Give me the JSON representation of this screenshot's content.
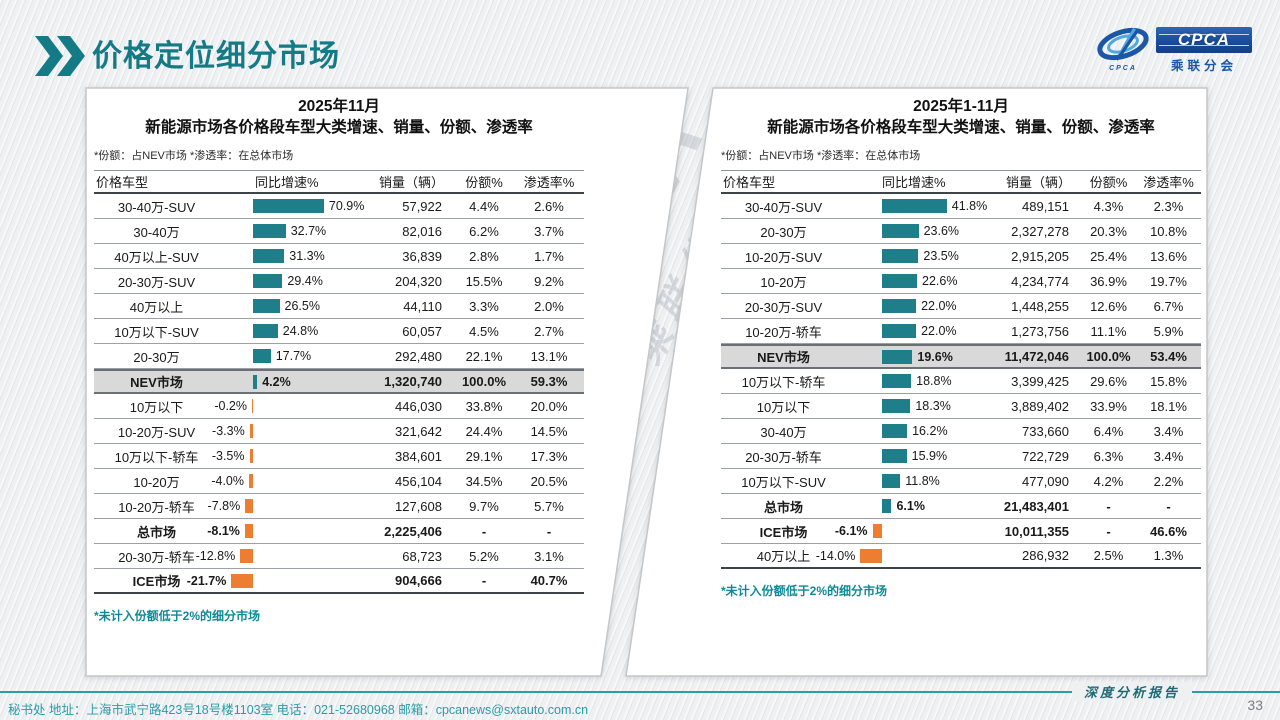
{
  "page": {
    "title": "价格定位细分市场",
    "watermark_line1": "CPCA",
    "watermark_line2": "乘联分会",
    "logo": {
      "cpca": "CPCA",
      "org": "乘联分会",
      "emblem_sub": "CPCA"
    },
    "footer": {
      "contact": "秘书处  地址：上海市武宁路423号18号楼1103室 电话：021-52680968  邮箱：cpcanews@sxtauto.com.cn",
      "report_label": "深度分析报告",
      "page_number": "33"
    }
  },
  "colors": {
    "teal": "#147A85",
    "bar_positive": "#1E7E8A",
    "bar_negative": "#ED7D31",
    "highlight_row": "#D9D9D9",
    "footnote": "#0E8A96",
    "footer_text": "#2E9BA6",
    "logo_blue": "#1B57A6"
  },
  "tables": [
    {
      "title_line1": "2025年11月",
      "title_line2": "新能源市场各价格段车型大类增速、销量、份额、渗透率",
      "note": "*份额：占NEV市场  *渗透率：在总体市场",
      "columns": [
        "价格车型",
        "同比增速%",
        "销量（辆）",
        "份额%",
        "渗透率%"
      ],
      "footnote": "*未计入份额低于2%的细分市场",
      "baseline": 34,
      "bar_scale": 1.0,
      "rows": [
        {
          "name": "30-40万-SUV",
          "growth": 70.9,
          "label": "70.9%",
          "sales": "57,922",
          "share": "4.4%",
          "pen": "2.6%",
          "bold": false,
          "highlight": false
        },
        {
          "name": "30-40万",
          "growth": 32.7,
          "label": "32.7%",
          "sales": "82,016",
          "share": "6.2%",
          "pen": "3.7%",
          "bold": false,
          "highlight": false
        },
        {
          "name": "40万以上-SUV",
          "growth": 31.3,
          "label": "31.3%",
          "sales": "36,839",
          "share": "2.8%",
          "pen": "1.7%",
          "bold": false,
          "highlight": false
        },
        {
          "name": "20-30万-SUV",
          "growth": 29.4,
          "label": "29.4%",
          "sales": "204,320",
          "share": "15.5%",
          "pen": "9.2%",
          "bold": false,
          "highlight": false
        },
        {
          "name": "40万以上",
          "growth": 26.5,
          "label": "26.5%",
          "sales": "44,110",
          "share": "3.3%",
          "pen": "2.0%",
          "bold": false,
          "highlight": false
        },
        {
          "name": "10万以下-SUV",
          "growth": 24.8,
          "label": "24.8%",
          "sales": "60,057",
          "share": "4.5%",
          "pen": "2.7%",
          "bold": false,
          "highlight": false
        },
        {
          "name": "20-30万",
          "growth": 17.7,
          "label": "17.7%",
          "sales": "292,480",
          "share": "22.1%",
          "pen": "13.1%",
          "bold": false,
          "highlight": false
        },
        {
          "name": "NEV市场",
          "growth": 4.2,
          "label": "4.2%",
          "sales": "1,320,740",
          "share": "100.0%",
          "pen": "59.3%",
          "bold": true,
          "highlight": true
        },
        {
          "name": "10万以下",
          "growth": -0.2,
          "label": "-0.2%",
          "sales": "446,030",
          "share": "33.8%",
          "pen": "20.0%",
          "bold": false,
          "highlight": false
        },
        {
          "name": "10-20万-SUV",
          "growth": -3.3,
          "label": "-3.3%",
          "sales": "321,642",
          "share": "24.4%",
          "pen": "14.5%",
          "bold": false,
          "highlight": false
        },
        {
          "name": "10万以下-轿车",
          "growth": -3.5,
          "label": "-3.5%",
          "sales": "384,601",
          "share": "29.1%",
          "pen": "17.3%",
          "bold": false,
          "highlight": false
        },
        {
          "name": "10-20万",
          "growth": -4.0,
          "label": "-4.0%",
          "sales": "456,104",
          "share": "34.5%",
          "pen": "20.5%",
          "bold": false,
          "highlight": false
        },
        {
          "name": "10-20万-轿车",
          "growth": -7.8,
          "label": "-7.8%",
          "sales": "127,608",
          "share": "9.7%",
          "pen": "5.7%",
          "bold": false,
          "highlight": false
        },
        {
          "name": "总市场",
          "growth": -8.1,
          "label": "-8.1%",
          "sales": "2,225,406",
          "share": "-",
          "pen": "-",
          "bold": true,
          "highlight": false
        },
        {
          "name": "20-30万-轿车",
          "growth": -12.8,
          "label": "-12.8%",
          "sales": "68,723",
          "share": "5.2%",
          "pen": "3.1%",
          "bold": false,
          "highlight": false
        },
        {
          "name": "ICE市场",
          "growth": -21.7,
          "label": "-21.7%",
          "sales": "904,666",
          "share": "-",
          "pen": "40.7%",
          "bold": true,
          "highlight": false
        }
      ]
    },
    {
      "title_line1": "2025年1-11月",
      "title_line2": "新能源市场各价格段车型大类增速、销量、份额、渗透率",
      "note": "*份额：占NEV市场  *渗透率：在总体市场",
      "columns": [
        "价格车型",
        "同比增速%",
        "销量（辆）",
        "份额%",
        "渗透率%"
      ],
      "footnote": "*未计入份额低于2%的细分市场",
      "baseline": 36,
      "bar_scale": 1.55,
      "rows": [
        {
          "name": "30-40万-SUV",
          "growth": 41.8,
          "label": "41.8%",
          "sales": "489,151",
          "share": "4.3%",
          "pen": "2.3%",
          "bold": false,
          "highlight": false
        },
        {
          "name": "20-30万",
          "growth": 23.6,
          "label": "23.6%",
          "sales": "2,327,278",
          "share": "20.3%",
          "pen": "10.8%",
          "bold": false,
          "highlight": false
        },
        {
          "name": "10-20万-SUV",
          "growth": 23.5,
          "label": "23.5%",
          "sales": "2,915,205",
          "share": "25.4%",
          "pen": "13.6%",
          "bold": false,
          "highlight": false
        },
        {
          "name": "10-20万",
          "growth": 22.6,
          "label": "22.6%",
          "sales": "4,234,774",
          "share": "36.9%",
          "pen": "19.7%",
          "bold": false,
          "highlight": false
        },
        {
          "name": "20-30万-SUV",
          "growth": 22.0,
          "label": "22.0%",
          "sales": "1,448,255",
          "share": "12.6%",
          "pen": "6.7%",
          "bold": false,
          "highlight": false
        },
        {
          "name": "10-20万-轿车",
          "growth": 22.0,
          "label": "22.0%",
          "sales": "1,273,756",
          "share": "11.1%",
          "pen": "5.9%",
          "bold": false,
          "highlight": false
        },
        {
          "name": "NEV市场",
          "growth": 19.6,
          "label": "19.6%",
          "sales": "11,472,046",
          "share": "100.0%",
          "pen": "53.4%",
          "bold": true,
          "highlight": true
        },
        {
          "name": "10万以下-轿车",
          "growth": 18.8,
          "label": "18.8%",
          "sales": "3,399,425",
          "share": "29.6%",
          "pen": "15.8%",
          "bold": false,
          "highlight": false
        },
        {
          "name": "10万以下",
          "growth": 18.3,
          "label": "18.3%",
          "sales": "3,889,402",
          "share": "33.9%",
          "pen": "18.1%",
          "bold": false,
          "highlight": false
        },
        {
          "name": "30-40万",
          "growth": 16.2,
          "label": "16.2%",
          "sales": "733,660",
          "share": "6.4%",
          "pen": "3.4%",
          "bold": false,
          "highlight": false
        },
        {
          "name": "20-30万-轿车",
          "growth": 15.9,
          "label": "15.9%",
          "sales": "722,729",
          "share": "6.3%",
          "pen": "3.4%",
          "bold": false,
          "highlight": false
        },
        {
          "name": "10万以下-SUV",
          "growth": 11.8,
          "label": "11.8%",
          "sales": "477,090",
          "share": "4.2%",
          "pen": "2.2%",
          "bold": false,
          "highlight": false
        },
        {
          "name": "总市场",
          "growth": 6.1,
          "label": "6.1%",
          "sales": "21,483,401",
          "share": "-",
          "pen": "-",
          "bold": true,
          "highlight": false
        },
        {
          "name": "ICE市场",
          "growth": -6.1,
          "label": "-6.1%",
          "sales": "10,011,355",
          "share": "-",
          "pen": "46.6%",
          "bold": true,
          "highlight": false
        },
        {
          "name": "40万以上",
          "growth": -14.0,
          "label": "-14.0%",
          "sales": "286,932",
          "share": "2.5%",
          "pen": "1.3%",
          "bold": false,
          "highlight": false
        }
      ]
    }
  ],
  "chart_data": [
    {
      "type": "bar",
      "title": "2025年11月 新能源市场各价格段车型大类增速、销量、份额、渗透率",
      "orientation": "horizontal-in-table",
      "categories": [
        "30-40万-SUV",
        "30-40万",
        "40万以上-SUV",
        "20-30万-SUV",
        "40万以上",
        "10万以下-SUV",
        "20-30万",
        "NEV市场",
        "10万以下",
        "10-20万-SUV",
        "10万以下-轿车",
        "10-20万",
        "10-20万-轿车",
        "总市场",
        "20-30万-轿车",
        "ICE市场"
      ],
      "series": [
        {
          "name": "同比增速%",
          "values": [
            70.9,
            32.7,
            31.3,
            29.4,
            26.5,
            24.8,
            17.7,
            4.2,
            -0.2,
            -3.3,
            -3.5,
            -4.0,
            -7.8,
            -8.1,
            -12.8,
            -21.7
          ]
        },
        {
          "name": "销量（辆）",
          "values": [
            57922,
            82016,
            36839,
            204320,
            44110,
            60057,
            292480,
            1320740,
            446030,
            321642,
            384601,
            456104,
            127608,
            2225406,
            68723,
            904666
          ]
        },
        {
          "name": "份额%",
          "values": [
            4.4,
            6.2,
            2.8,
            15.5,
            3.3,
            4.5,
            22.1,
            100.0,
            33.8,
            24.4,
            29.1,
            34.5,
            9.7,
            null,
            5.2,
            null
          ]
        },
        {
          "name": "渗透率%",
          "values": [
            2.6,
            3.7,
            1.7,
            9.2,
            2.0,
            2.7,
            13.1,
            59.3,
            20.0,
            14.5,
            17.3,
            20.5,
            5.7,
            null,
            3.1,
            40.7
          ]
        }
      ],
      "xlim": [
        -25,
        75
      ],
      "positive_color": "#1E7E8A",
      "negative_color": "#ED7D31",
      "grid": false,
      "legend": false
    },
    {
      "type": "bar",
      "title": "2025年1-11月 新能源市场各价格段车型大类增速、销量、份额、渗透率",
      "orientation": "horizontal-in-table",
      "categories": [
        "30-40万-SUV",
        "20-30万",
        "10-20万-SUV",
        "10-20万",
        "20-30万-SUV",
        "10-20万-轿车",
        "NEV市场",
        "10万以下-轿车",
        "10万以下",
        "30-40万",
        "20-30万-轿车",
        "10万以下-SUV",
        "总市场",
        "ICE市场",
        "40万以上"
      ],
      "series": [
        {
          "name": "同比增速%",
          "values": [
            41.8,
            23.6,
            23.5,
            22.6,
            22.0,
            22.0,
            19.6,
            18.8,
            18.3,
            16.2,
            15.9,
            11.8,
            6.1,
            -6.1,
            -14.0
          ]
        },
        {
          "name": "销量（辆）",
          "values": [
            489151,
            2327278,
            2915205,
            4234774,
            1448255,
            1273756,
            11472046,
            3399425,
            3889402,
            733660,
            722729,
            477090,
            21483401,
            10011355,
            286932
          ]
        },
        {
          "name": "份额%",
          "values": [
            4.3,
            20.3,
            25.4,
            36.9,
            12.6,
            11.1,
            100.0,
            29.6,
            33.9,
            6.4,
            6.3,
            4.2,
            null,
            null,
            2.5
          ]
        },
        {
          "name": "渗透率%",
          "values": [
            2.3,
            10.8,
            13.6,
            19.7,
            6.7,
            5.9,
            53.4,
            15.8,
            18.1,
            3.4,
            3.4,
            2.2,
            null,
            46.6,
            1.3
          ]
        }
      ],
      "xlim": [
        -20,
        50
      ],
      "positive_color": "#1E7E8A",
      "negative_color": "#ED7D31",
      "grid": false,
      "legend": false
    }
  ]
}
